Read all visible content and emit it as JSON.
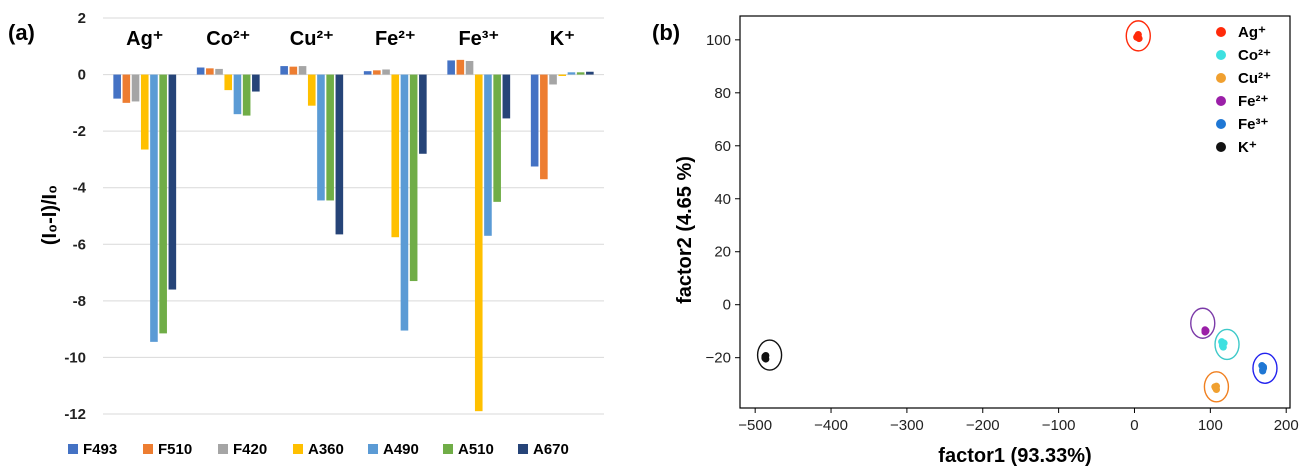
{
  "chart_data": [
    {
      "panel": "(a)",
      "type": "bar",
      "categories": [
        "Ag⁺",
        "Co²⁺",
        "Cu²⁺",
        "Fe²⁺",
        "Fe³⁺",
        "K⁺"
      ],
      "ylabel": "(I₀-I)/I₀",
      "ylim": [
        -12,
        2
      ],
      "yticks": [
        2,
        0,
        -2,
        -4,
        -6,
        -8,
        -10,
        -12
      ],
      "grid": true,
      "legend_position": "bottom",
      "series": [
        {
          "name": "F493",
          "color": "#4472C4",
          "values": [
            -0.85,
            0.25,
            0.3,
            0.12,
            0.5,
            -3.25
          ]
        },
        {
          "name": "F510",
          "color": "#ED7D31",
          "values": [
            -1.0,
            0.22,
            0.28,
            0.15,
            0.52,
            -3.7
          ]
        },
        {
          "name": "F420",
          "color": "#A5A5A5",
          "values": [
            -0.95,
            0.2,
            0.3,
            0.18,
            0.48,
            -0.35
          ]
        },
        {
          "name": "A360",
          "color": "#FFC000",
          "values": [
            -2.65,
            -0.55,
            -1.1,
            -5.75,
            -11.9,
            -0.05
          ]
        },
        {
          "name": "A490",
          "color": "#5B9BD5",
          "values": [
            -9.45,
            -1.4,
            -4.45,
            -9.05,
            -5.7,
            0.08
          ]
        },
        {
          "name": "A510",
          "color": "#70AD47",
          "values": [
            -9.15,
            -1.45,
            -4.45,
            -7.3,
            -4.5,
            0.08
          ]
        },
        {
          "name": "A670",
          "color": "#264478",
          "values": [
            -7.6,
            -0.6,
            -5.65,
            -2.8,
            -1.55,
            0.1
          ]
        }
      ]
    },
    {
      "panel": "(b)",
      "type": "scatter",
      "xlabel": "factor1 (93.33%)",
      "ylabel": "factor2 (4.65 %)",
      "xlim": [
        -520,
        205
      ],
      "ylim": [
        -39,
        109
      ],
      "xticks": [
        -500,
        -400,
        -300,
        -200,
        -100,
        0,
        100,
        200
      ],
      "yticks": [
        -20,
        0,
        20,
        40,
        60,
        80,
        100
      ],
      "xtick_labels": [
        "−500",
        "−400",
        "−300",
        "−200",
        "−100",
        "0",
        "100",
        "200"
      ],
      "ytick_labels": [
        "−20",
        "0",
        "20",
        "40",
        "60",
        "80",
        "100"
      ],
      "legend_position": "top-right",
      "series": [
        {
          "name": "Ag⁺",
          "color": "#FF2A0A",
          "ring": "#FF2A0A",
          "center": [
            5,
            101.5
          ],
          "points": [
            [
              3,
              101
            ],
            [
              5,
              102
            ],
            [
              6,
              100.5
            ],
            [
              4,
              101.5
            ],
            [
              5,
              100.8
            ]
          ]
        },
        {
          "name": "Co²⁺",
          "color": "#3EE0E0",
          "ring": "#3EC9C9",
          "center": [
            122,
            -15
          ],
          "points": [
            [
              115,
              -14
            ],
            [
              117,
              -16
            ],
            [
              116,
              -15
            ],
            [
              118,
              -14.5
            ],
            [
              116,
              -15.5
            ]
          ]
        },
        {
          "name": "Cu²⁺",
          "color": "#F0A030",
          "ring": "#F08020",
          "center": [
            108,
            -31
          ],
          "points": [
            [
              106,
              -31
            ],
            [
              108,
              -32
            ],
            [
              107,
              -31.5
            ],
            [
              108,
              -30.8
            ],
            [
              107,
              -31.2
            ]
          ]
        },
        {
          "name": "Fe²⁺",
          "color": "#9B1FA8",
          "ring": "#7B3AA8",
          "center": [
            90,
            -7
          ],
          "points": [
            [
              93,
              -9.5
            ],
            [
              94,
              -10
            ],
            [
              93,
              -10.3
            ],
            [
              94,
              -9.8
            ],
            [
              93,
              -9.9
            ]
          ]
        },
        {
          "name": "Fe³⁺",
          "color": "#1F77D4",
          "ring": "#2222EE",
          "center": [
            172,
            -24
          ],
          "points": [
            [
              168,
              -23
            ],
            [
              170,
              -24
            ],
            [
              169,
              -25
            ],
            [
              170,
              -23.5
            ],
            [
              169,
              -24.5
            ]
          ]
        },
        {
          "name": "K⁺",
          "color": "#111111",
          "ring": "#111111",
          "center": [
            -481,
            -19
          ],
          "points": [
            [
              -487,
              -19.5
            ],
            [
              -486,
              -20.5
            ],
            [
              -487,
              -20
            ],
            [
              -486,
              -19.2
            ],
            [
              -487,
              -20.2
            ]
          ]
        }
      ]
    }
  ]
}
